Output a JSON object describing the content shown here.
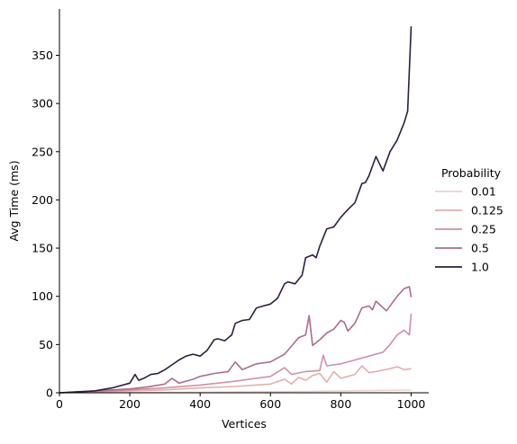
{
  "chart_data": {
    "type": "line",
    "title": "",
    "xlabel": "Vertices",
    "ylabel": "Avg Time (ms)",
    "xlim": [
      0,
      1050
    ],
    "ylim": [
      0,
      398
    ],
    "xticks": [
      0,
      200,
      400,
      600,
      800,
      1000
    ],
    "yticks": [
      0,
      50,
      100,
      150,
      200,
      250,
      300,
      350
    ],
    "grid": false,
    "legend": {
      "title": "Probability",
      "placement": "right"
    },
    "series": [
      {
        "name": "0.01",
        "color": "#efd1cb",
        "x": [
          0,
          200,
          400,
          500,
          600,
          700,
          800,
          900,
          1000
        ],
        "y": [
          0,
          0.2,
          0.5,
          0.8,
          1.1,
          1.4,
          1.8,
          2.3,
          2.8
        ]
      },
      {
        "name": "0.125",
        "color": "#e1b0ab",
        "x": [
          0,
          100,
          200,
          300,
          400,
          500,
          600,
          640,
          660,
          680,
          700,
          720,
          740,
          760,
          780,
          800,
          840,
          860,
          880,
          900,
          940,
          960,
          980,
          1000
        ],
        "y": [
          0,
          0.5,
          2,
          3,
          5,
          6.5,
          9,
          14,
          9,
          16,
          13,
          18,
          20,
          11,
          22,
          15,
          19,
          28,
          21,
          22,
          25,
          27,
          24,
          25
        ]
      },
      {
        "name": "0.25",
        "color": "#cf91a3",
        "x": [
          0,
          100,
          200,
          300,
          400,
          500,
          600,
          640,
          660,
          700,
          740,
          750,
          760,
          800,
          840,
          880,
          920,
          940,
          960,
          980,
          995,
          1000
        ],
        "y": [
          0,
          1,
          3,
          5,
          8,
          12,
          17,
          26,
          19,
          22,
          23,
          39,
          28,
          30,
          34,
          38,
          42,
          50,
          60,
          65,
          60,
          82
        ]
      },
      {
        "name": "0.5",
        "color": "#ad6c8c",
        "x": [
          0,
          100,
          150,
          200,
          250,
          300,
          320,
          340,
          380,
          400,
          440,
          480,
          500,
          520,
          560,
          600,
          640,
          680,
          700,
          710,
          720,
          740,
          760,
          780,
          800,
          810,
          820,
          840,
          860,
          880,
          890,
          900,
          930,
          960,
          980,
          995,
          1000
        ],
        "y": [
          0,
          2,
          3,
          4,
          6,
          9,
          15,
          10,
          14,
          17,
          20,
          22,
          32,
          24,
          30,
          32,
          40,
          57,
          60,
          80,
          49,
          55,
          62,
          66,
          75,
          73,
          64,
          72,
          88,
          90,
          86,
          95,
          85,
          100,
          108,
          110,
          99
        ]
      },
      {
        "name": "1.0",
        "color": "#2d1f3c",
        "x": [
          0,
          100,
          150,
          200,
          215,
          225,
          240,
          260,
          280,
          300,
          320,
          340,
          360,
          380,
          400,
          420,
          440,
          450,
          470,
          490,
          500,
          520,
          540,
          560,
          580,
          600,
          620,
          640,
          650,
          670,
          690,
          700,
          720,
          730,
          740,
          760,
          780,
          800,
          820,
          840,
          860,
          870,
          880,
          900,
          920,
          940,
          960,
          980,
          990,
          1000
        ],
        "y": [
          0,
          2,
          5,
          10,
          19,
          13,
          15,
          19,
          20,
          24,
          29,
          34,
          38,
          40,
          38,
          44,
          55,
          56,
          54,
          60,
          72,
          75,
          76,
          88,
          90,
          92,
          98,
          113,
          115,
          113,
          122,
          140,
          143,
          140,
          152,
          170,
          172,
          182,
          190,
          197,
          217,
          218,
          225,
          245,
          230,
          250,
          262,
          280,
          292,
          380
        ]
      }
    ]
  }
}
